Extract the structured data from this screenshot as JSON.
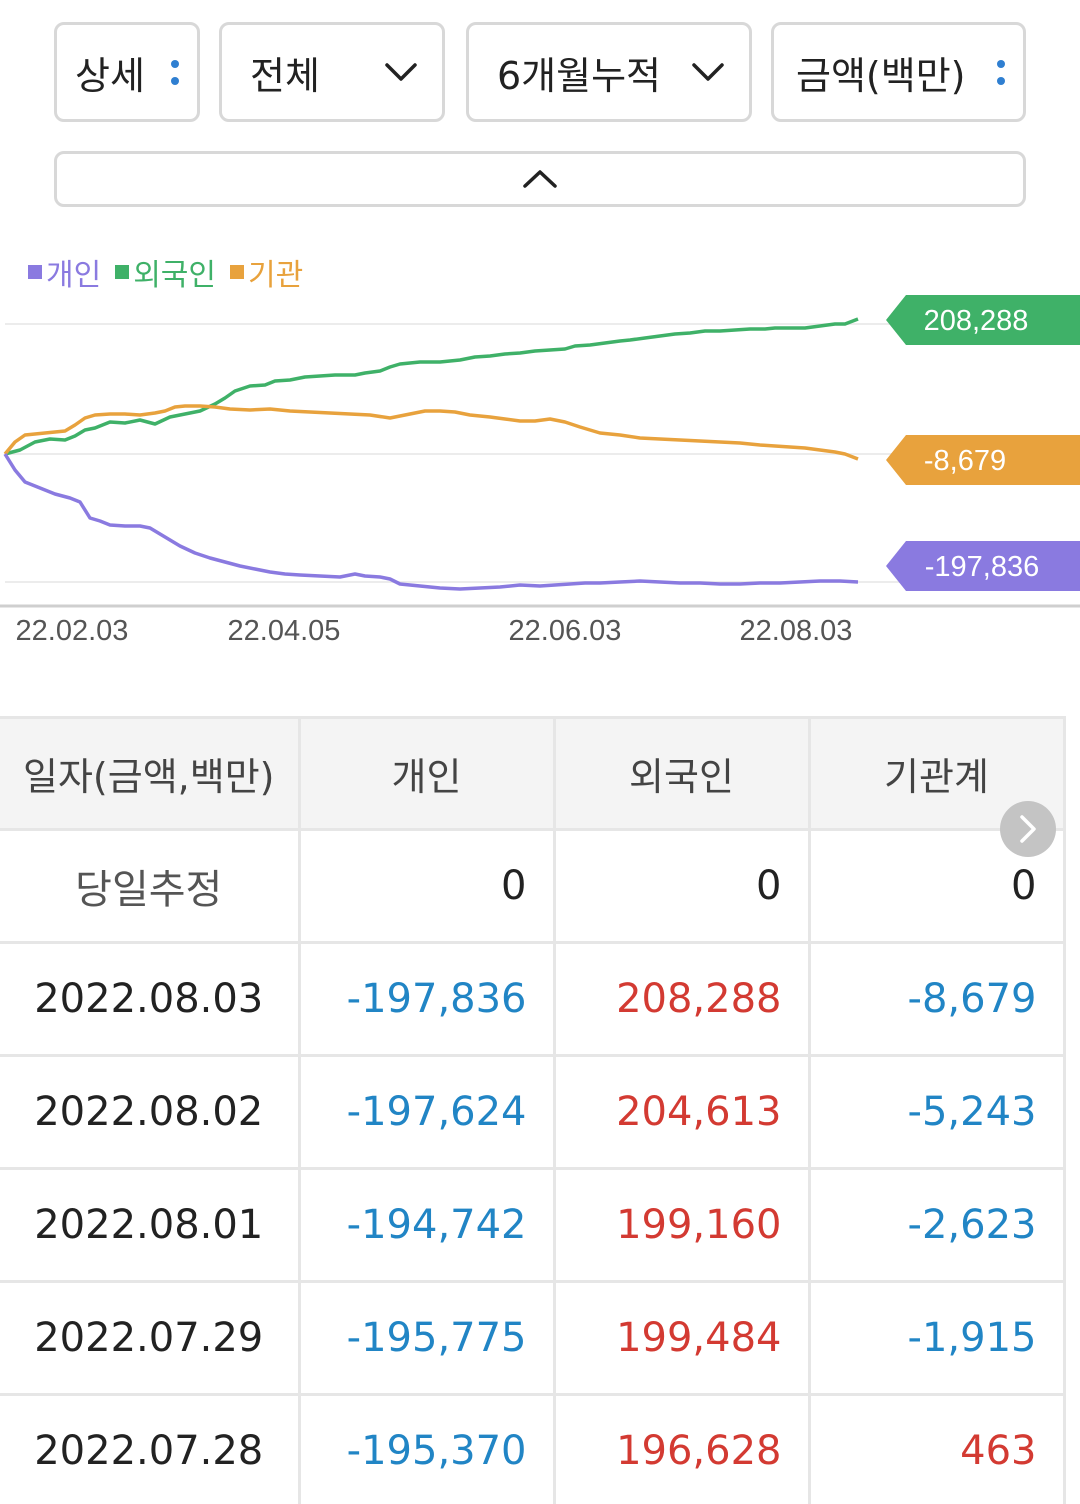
{
  "filters": {
    "detail": "상세",
    "scope": "전체",
    "period": "6개월누적",
    "unit": "금액(백만)"
  },
  "colors": {
    "individual": "#8a7ae0",
    "foreign": "#3fb168",
    "institution": "#e8a23d",
    "positive": "#d33a32",
    "negative": "#2185c5"
  },
  "icons": {
    "more": "vertical-dots-icon",
    "dropdown": "chevron-down-icon",
    "collapse": "chevron-up-icon",
    "scroll": "chevron-right-icon"
  },
  "chart_data": {
    "type": "line",
    "x": [
      "22.02.03",
      "22.04.05",
      "22.06.03",
      "22.08.03"
    ],
    "series": [
      {
        "name": "개인",
        "end_label": "-197,836"
      },
      {
        "name": "외국인",
        "end_label": "208,288"
      },
      {
        "name": "기관",
        "end_label": "-8,679"
      }
    ],
    "legend_position": "top-left",
    "grid": true
  },
  "table": {
    "headers": [
      "일자(금액,백만)",
      "개인",
      "외국인",
      "기관계"
    ],
    "rows": [
      {
        "date": "당일추정",
        "individual": "0",
        "foreign": "0",
        "institution": "0"
      },
      {
        "date": "2022.08.03",
        "individual": "-197,836",
        "foreign": "208,288",
        "institution": "-8,679"
      },
      {
        "date": "2022.08.02",
        "individual": "-197,624",
        "foreign": "204,613",
        "institution": "-5,243"
      },
      {
        "date": "2022.08.01",
        "individual": "-194,742",
        "foreign": "199,160",
        "institution": "-2,623"
      },
      {
        "date": "2022.07.29",
        "individual": "-195,775",
        "foreign": "199,484",
        "institution": "-1,915"
      },
      {
        "date": "2022.07.28",
        "individual": "-195,370",
        "foreign": "196,628",
        "institution": "463"
      }
    ]
  }
}
